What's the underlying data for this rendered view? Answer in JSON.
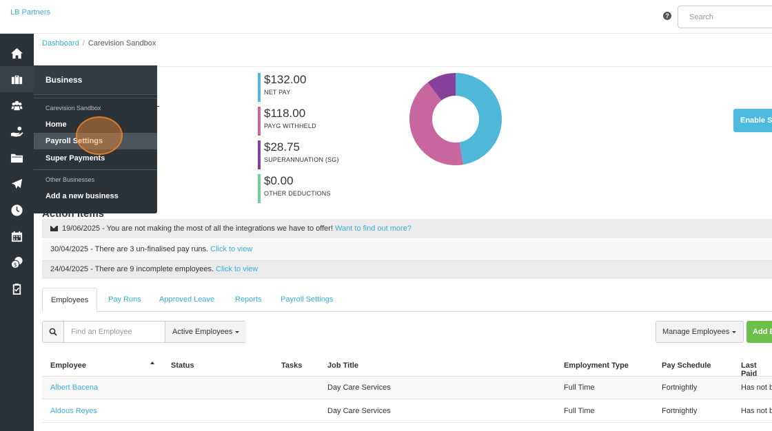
{
  "topbar": {
    "brand": "LB Partners",
    "help_icon": "?",
    "search_placeholder": "Search"
  },
  "sidebar": {
    "icons": [
      "home-icon",
      "briefcase-icon",
      "users-icon",
      "hand-coin-icon",
      "folder-icon",
      "plane-icon",
      "clock-icon",
      "calendar-icon",
      "coins-icon",
      "clipboard-check-icon"
    ],
    "active": "briefcase-icon"
  },
  "breadcrumb": {
    "home": "Dashboard",
    "separator": "/",
    "current": "Carevision Sandbox"
  },
  "stats": [
    {
      "amount": "$132.00",
      "label": "NET PAY",
      "color": "#4fb8d8"
    },
    {
      "amount": "$118.00",
      "label": "PAYG WITHHELD",
      "color": "#c8679f"
    },
    {
      "amount": "$28.75",
      "label": "SUPERANNUATION (SG)",
      "color": "#86409a"
    },
    {
      "amount": "$0.00",
      "label": "OTHER DEDUCTIONS",
      "color": "#6fce9c"
    }
  ],
  "donut": {
    "slices": [
      {
        "name": "net-pay",
        "value": 132.0,
        "color": "#4fb8d8"
      },
      {
        "name": "payg-withheld",
        "value": 118.0,
        "color": "#c8679f"
      },
      {
        "name": "superannuation",
        "value": 28.75,
        "color": "#86409a"
      }
    ]
  },
  "enable_button": "Enable Si",
  "action_items": {
    "title": "Action Items",
    "rows": [
      {
        "text": "19/06/2025 - You are not making the most of all the integrations we have to offer! ",
        "link": "Want to find out more?",
        "icon": "envelope-icon"
      },
      {
        "text": "30/04/2025 - There are 3 un-finalised pay runs. ",
        "link": "Click to view"
      },
      {
        "text": "24/04/2025 - There are 9 incomplete employees. ",
        "link": "Click to view"
      }
    ]
  },
  "tabs": [
    "Employees",
    "Pay Runs",
    "Approved Leave",
    "Reports",
    "Payroll Settings"
  ],
  "toolbar": {
    "search_placeholder": "Find an Employee",
    "filter_label": "Active Employees",
    "manage_label": "Manage Employees",
    "add_label": "Add E"
  },
  "table": {
    "headers": [
      "Employee",
      "Status",
      "Tasks",
      "Job Title",
      "Employment Type",
      "Pay Schedule",
      "Last Paid"
    ],
    "rows": [
      {
        "employee": "Albert Bacena",
        "status": "",
        "tasks": "",
        "job_title": "Day Care Services",
        "employment_type": "Full Time",
        "pay_schedule": "Fortnightly",
        "last_paid": "Has not b"
      },
      {
        "employee": "Aldous Reyes",
        "status": "",
        "tasks": "",
        "job_title": "Day Care Services",
        "employment_type": "Full Time",
        "pay_schedule": "Fortnightly",
        "last_paid": "Has not b"
      }
    ]
  },
  "dropdown": {
    "header": "Business",
    "section1": "Carevision Sandbox",
    "items1": [
      "Home",
      "Payroll Settings",
      "Super Payments"
    ],
    "hovered": "Payroll Settings",
    "section2": "Other Businesses",
    "items2": [
      "Add a new business"
    ]
  }
}
